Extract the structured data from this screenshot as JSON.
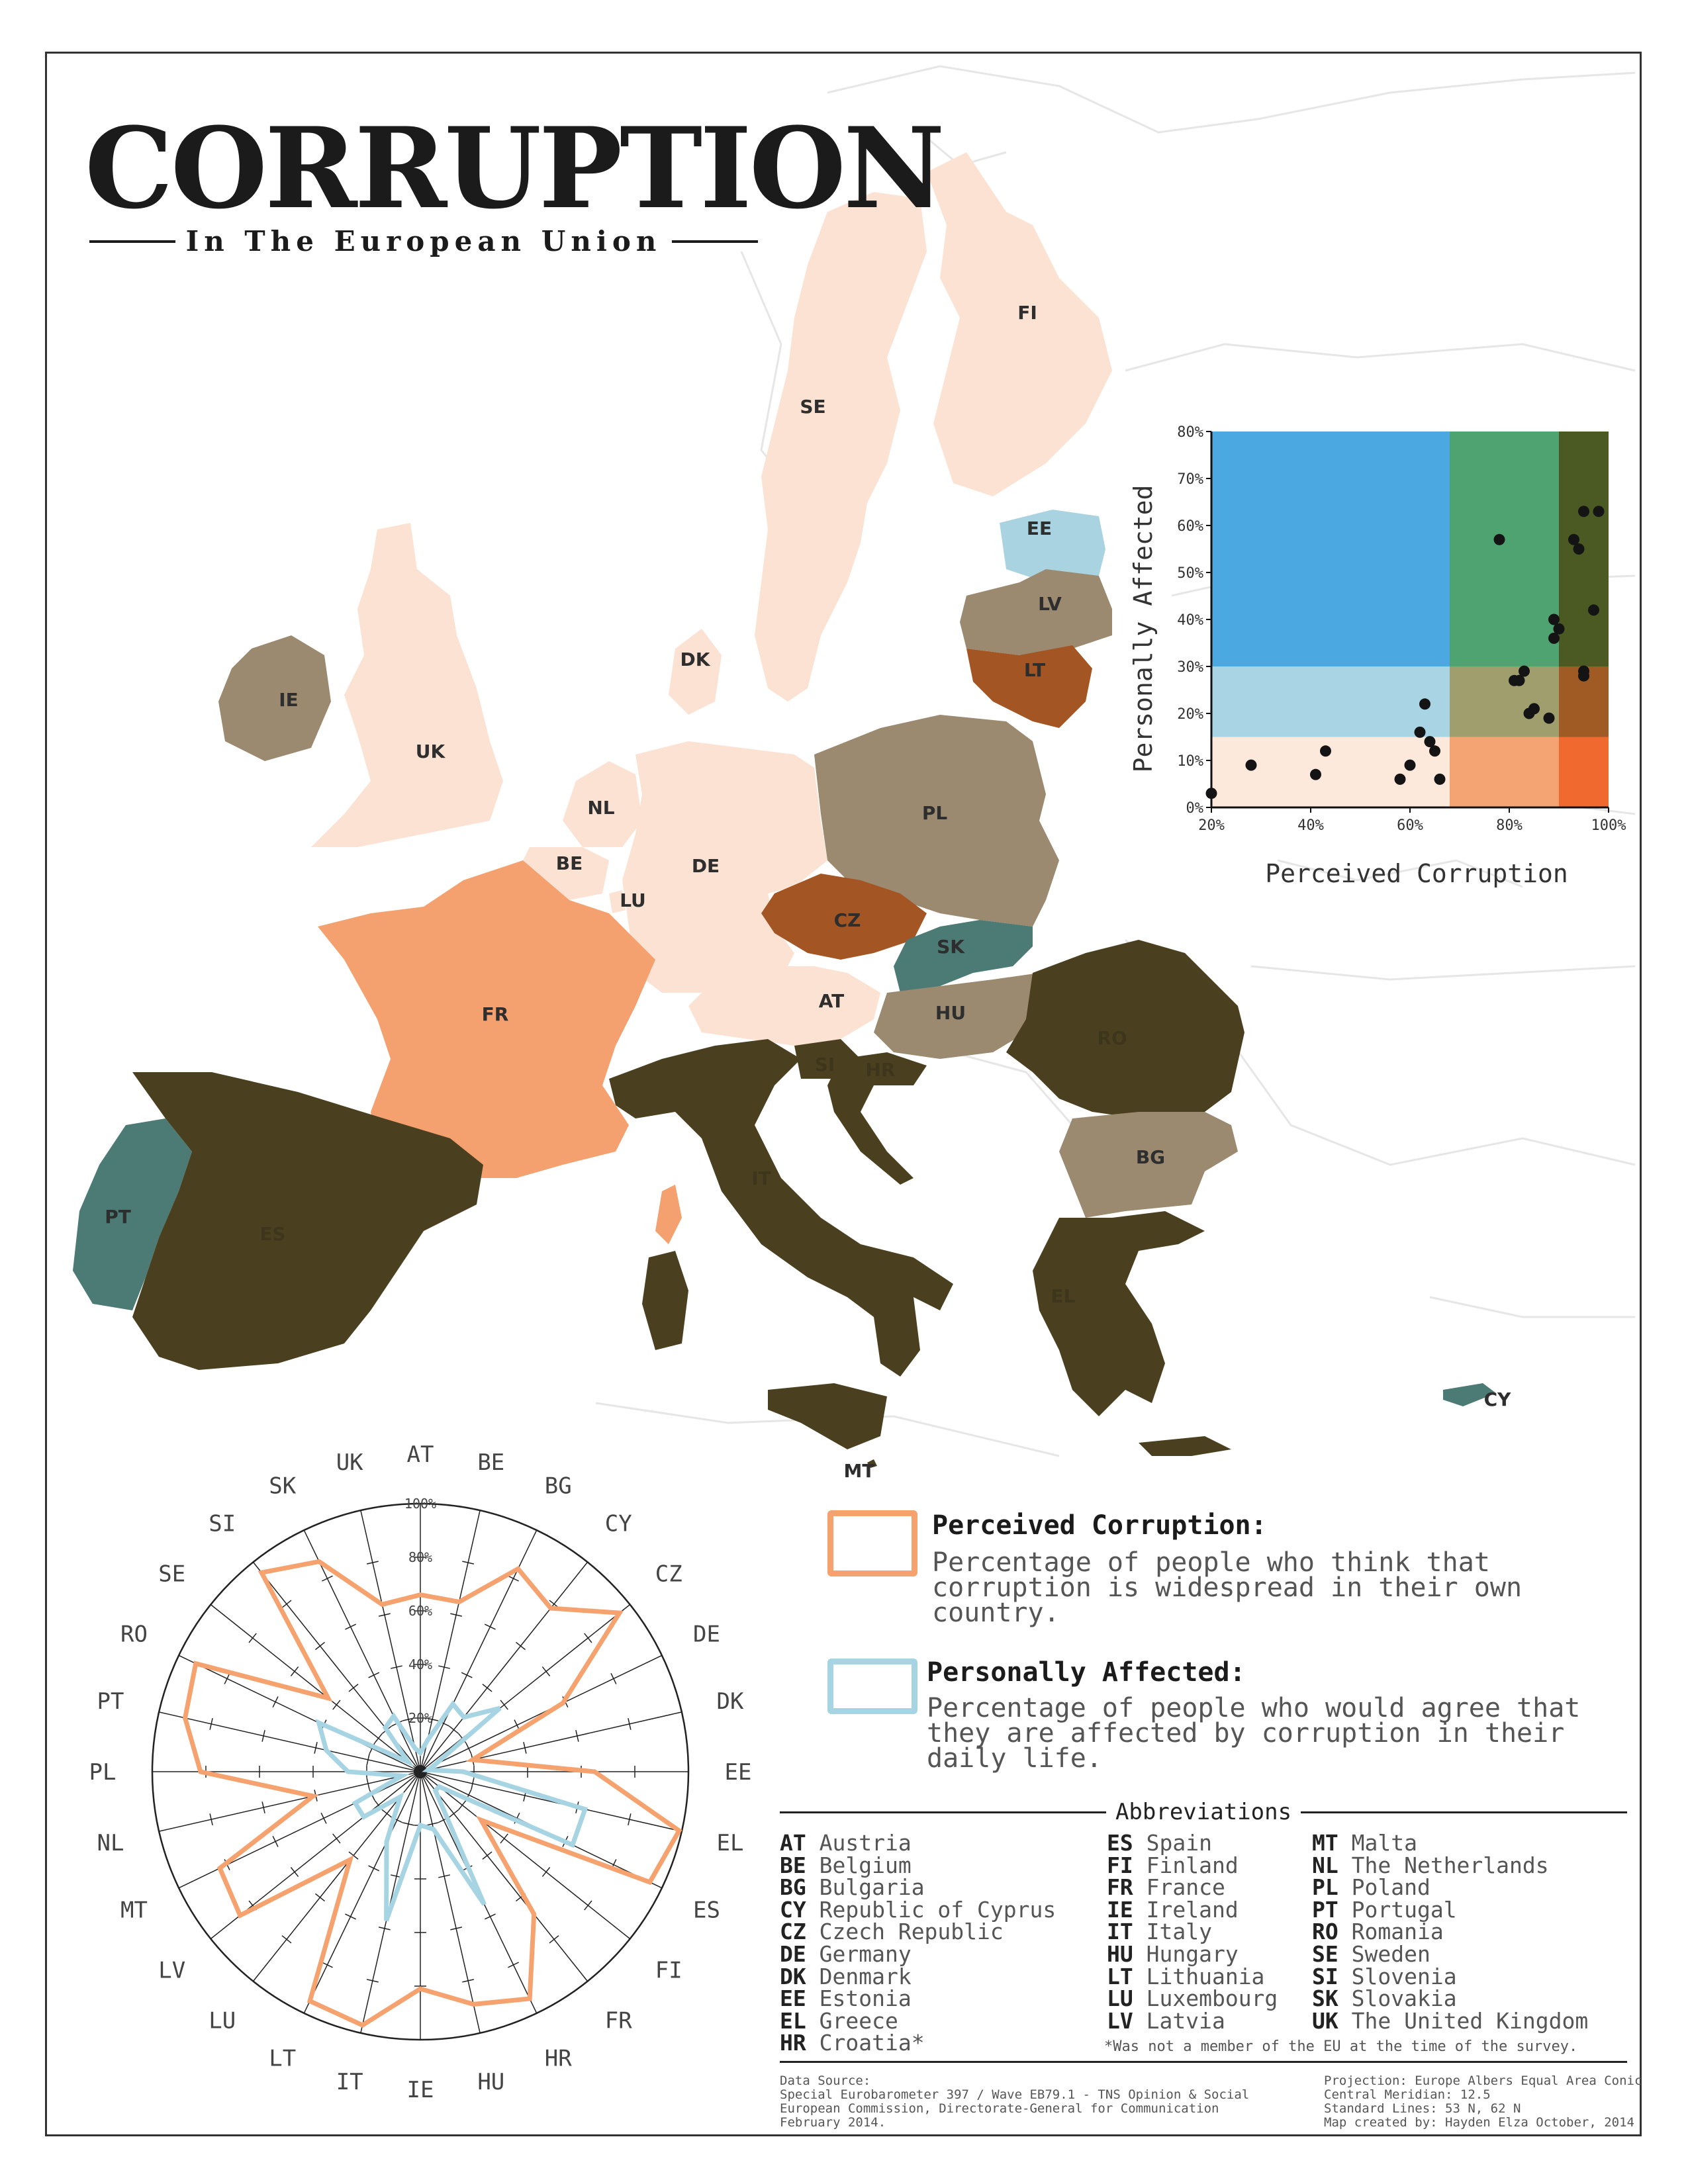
{
  "title": "CORRUPTION",
  "subtitle": "In The European Union",
  "colors": {
    "very_light_peach": "#fbe2d2",
    "salmon": "#f5a06f",
    "rust": "#a35523",
    "taupe": "#9b8a6f",
    "teal": "#4c7a74",
    "olive_dark": "#4a4020",
    "light_blue": "#a9d3e1",
    "perceived_line": "#f5a26f",
    "affected_line": "#a6d4e3"
  },
  "map": {
    "labels": [
      "FI",
      "SE",
      "EE",
      "LV",
      "LT",
      "DK",
      "IE",
      "UK",
      "PL",
      "NL",
      "DE",
      "BE",
      "LU",
      "CZ",
      "SK",
      "FR",
      "AT",
      "HU",
      "RO",
      "SI",
      "HR",
      "IT",
      "BG",
      "PT",
      "ES",
      "EL",
      "CY",
      "MT"
    ]
  },
  "scatter": {
    "xlabel": "Perceived Corruption",
    "ylabel": "Personally Affected",
    "xticks": [
      "20%",
      "40%",
      "60%",
      "80%",
      "100%"
    ],
    "yticks": [
      "0%",
      "10%",
      "20%",
      "30%",
      "40%",
      "50%",
      "60%",
      "70%",
      "80%"
    ]
  },
  "radar": {
    "ring_labels": [
      "20%",
      "40%",
      "60%",
      "80%",
      "100%"
    ]
  },
  "legend": {
    "perceived_title": "Perceived Corruption:",
    "perceived_desc": "Percentage of people who think that corruption is widespread in their own country.",
    "affected_title": "Personally Affected:",
    "affected_desc": "Percentage of people who would agree that they are affected by corruption in their daily life."
  },
  "abbreviations": {
    "heading": "Abbreviations",
    "col1": [
      [
        "AT",
        "Austria"
      ],
      [
        "BE",
        "Belgium"
      ],
      [
        "BG",
        "Bulgaria"
      ],
      [
        "CY",
        "Republic of Cyprus"
      ],
      [
        "CZ",
        "Czech Republic"
      ],
      [
        "DE",
        "Germany"
      ],
      [
        "DK",
        "Denmark"
      ],
      [
        "EE",
        "Estonia"
      ],
      [
        "EL",
        "Greece"
      ],
      [
        "HR",
        "Croatia*"
      ]
    ],
    "col2": [
      [
        "ES",
        "Spain"
      ],
      [
        "FI",
        "Finland"
      ],
      [
        "FR",
        "France"
      ],
      [
        "IE",
        "Ireland"
      ],
      [
        "IT",
        "Italy"
      ],
      [
        "HU",
        "Hungary"
      ],
      [
        "LT",
        "Lithuania"
      ],
      [
        "LU",
        "Luxembourg"
      ],
      [
        "LV",
        "Latvia"
      ]
    ],
    "col3": [
      [
        "MT",
        "Malta"
      ],
      [
        "NL",
        "The Netherlands"
      ],
      [
        "PL",
        "Poland"
      ],
      [
        "PT",
        "Portugal"
      ],
      [
        "RO",
        "Romania"
      ],
      [
        "SE",
        "Sweden"
      ],
      [
        "SI",
        "Slovenia"
      ],
      [
        "SK",
        "Slovakia"
      ],
      [
        "UK",
        "The United Kingdom"
      ]
    ],
    "note": "*Was not a member of the EU at the time of the survey."
  },
  "footer": {
    "source": "Data Source:\nSpecial Eurobarometer 397 / Wave EB79.1 - TNS Opinion & Social\nEuropean Commission, Directorate-General for Communication\nFebruary 2014.",
    "projection": "Projection: Europe Albers Equal Area Conic\nCentral Meridian: 12.5\nStandard Lines: 53 N, 62 N\nMap created by: Hayden Elza October, 2014"
  },
  "chart_data": [
    {
      "type": "scatter",
      "title": "",
      "xlabel": "Perceived Corruption",
      "ylabel": "Personally Affected",
      "xlim": [
        20,
        100
      ],
      "ylim": [
        0,
        80
      ],
      "x": [
        20,
        28,
        41,
        43,
        58,
        60,
        62,
        63,
        64,
        65,
        66,
        78,
        81,
        82,
        83,
        84,
        85,
        88,
        89,
        89,
        90,
        93,
        94,
        95,
        95,
        95,
        97,
        98
      ],
      "y": [
        3,
        9,
        7,
        12,
        6,
        9,
        16,
        22,
        14,
        12,
        6,
        57,
        27,
        27,
        29,
        20,
        21,
        19,
        36,
        40,
        38,
        57,
        55,
        28,
        29,
        63,
        42,
        63
      ]
    },
    {
      "type": "radar",
      "categories": [
        "AT",
        "BE",
        "BG",
        "CY",
        "CZ",
        "DE",
        "DK",
        "EE",
        "EL",
        "ES",
        "FI",
        "FR",
        "HR",
        "HU",
        "IE",
        "IT",
        "LT",
        "LU",
        "LV",
        "MT",
        "NL",
        "PL",
        "PT",
        "RO",
        "SE",
        "SI",
        "SK",
        "UK"
      ],
      "rlim": [
        0,
        100
      ],
      "series": [
        {
          "name": "Perceived Corruption",
          "values": [
            66,
            65,
            84,
            78,
            95,
            59,
            20,
            65,
            99,
            95,
            29,
            68,
            94,
            89,
            81,
            97,
            95,
            42,
            86,
            83,
            41,
            82,
            90,
            93,
            44,
            95,
            87,
            64
          ]
        },
        {
          "name": "Personally Affected",
          "values": [
            7,
            12,
            28,
            26,
            38,
            6,
            3,
            16,
            63,
            63,
            9,
            9,
            55,
            22,
            20,
            57,
            29,
            12,
            27,
            27,
            7,
            27,
            36,
            42,
            6,
            21,
            23,
            9
          ]
        }
      ]
    }
  ]
}
